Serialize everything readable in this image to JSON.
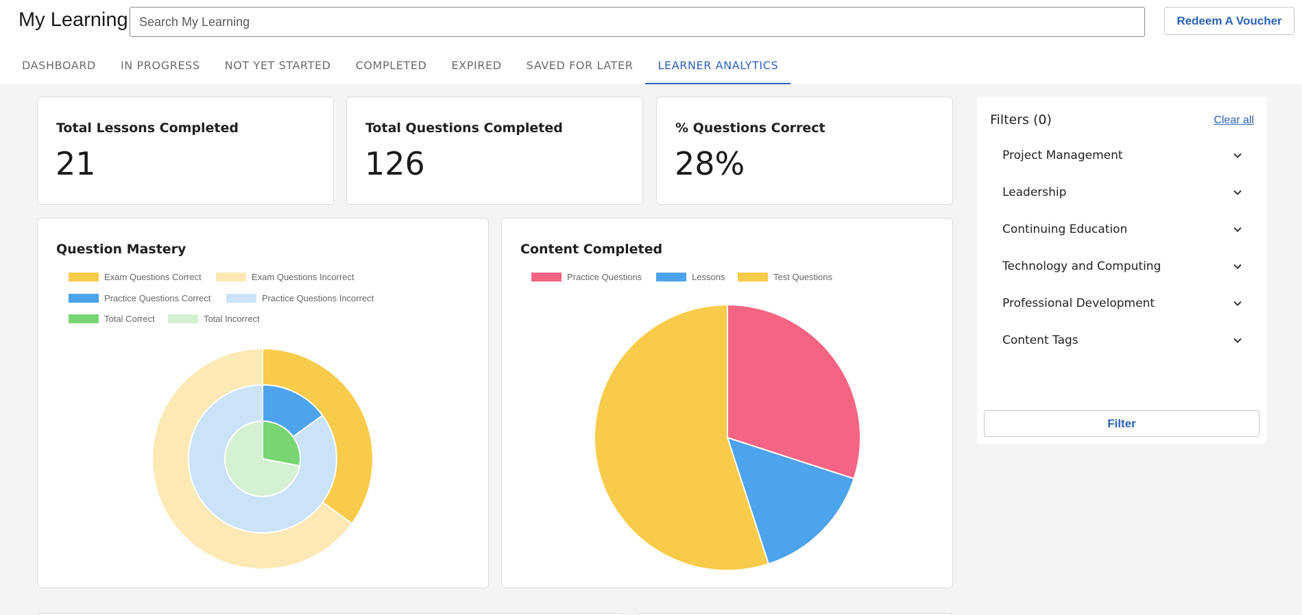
{
  "header": {
    "title": "My Learning",
    "search_placeholder": "Search My Learning",
    "voucher_label": "Redeem A Voucher"
  },
  "tabs": [
    {
      "label": "DASHBOARD"
    },
    {
      "label": "IN PROGRESS"
    },
    {
      "label": "NOT YET STARTED"
    },
    {
      "label": "COMPLETED"
    },
    {
      "label": "EXPIRED"
    },
    {
      "label": "SAVED FOR LATER"
    },
    {
      "label": "LEARNER ANALYTICS",
      "active": true
    }
  ],
  "stats": [
    {
      "label": "Total Lessons Completed",
      "value": "21"
    },
    {
      "label": "Total Questions Completed",
      "value": "126"
    },
    {
      "label": "% Questions Correct",
      "value": "28%"
    }
  ],
  "colors": {
    "accent": "#2a62b8",
    "exam_correct": "#f9cb4a",
    "exam_incorrect": "#fce9b5",
    "practice_correct": "#4da3ec",
    "practice_incorrect": "#cbe3f8",
    "total_correct": "#78d672",
    "total_incorrect": "#d5f1d3",
    "practice_questions": "#f56482",
    "lessons": "#4da3ec",
    "test_questions": "#f9cb4a"
  },
  "chart_data": [
    {
      "type": "pie",
      "variant": "nested-doughnut",
      "title": "Question Mastery",
      "legend": [
        "Exam Questions Correct",
        "Exam Questions Incorrect",
        "Practice Questions Correct",
        "Practice Questions Incorrect",
        "Total Correct",
        "Total Incorrect"
      ],
      "series": [
        {
          "ring": "outer",
          "labels": [
            "Exam Questions Correct",
            "Exam Questions Incorrect"
          ],
          "values": [
            35,
            65
          ]
        },
        {
          "ring": "middle",
          "labels": [
            "Practice Questions Correct",
            "Practice Questions Incorrect"
          ],
          "values": [
            15,
            85
          ]
        },
        {
          "ring": "inner",
          "labels": [
            "Total Correct",
            "Total Incorrect"
          ],
          "values": [
            28,
            72
          ]
        }
      ]
    },
    {
      "type": "pie",
      "title": "Content Completed",
      "legend": [
        "Practice Questions",
        "Lessons",
        "Test Questions"
      ],
      "labels": [
        "Practice Questions",
        "Lessons",
        "Test Questions"
      ],
      "values": [
        30,
        15,
        55
      ]
    }
  ],
  "filters": {
    "title": "Filters (0)",
    "clear_label": "Clear all",
    "items": [
      {
        "label": "Project Management"
      },
      {
        "label": "Leadership"
      },
      {
        "label": "Continuing Education"
      },
      {
        "label": "Technology and Computing"
      },
      {
        "label": "Professional Development"
      },
      {
        "label": "Content Tags"
      }
    ],
    "button_label": "Filter"
  }
}
